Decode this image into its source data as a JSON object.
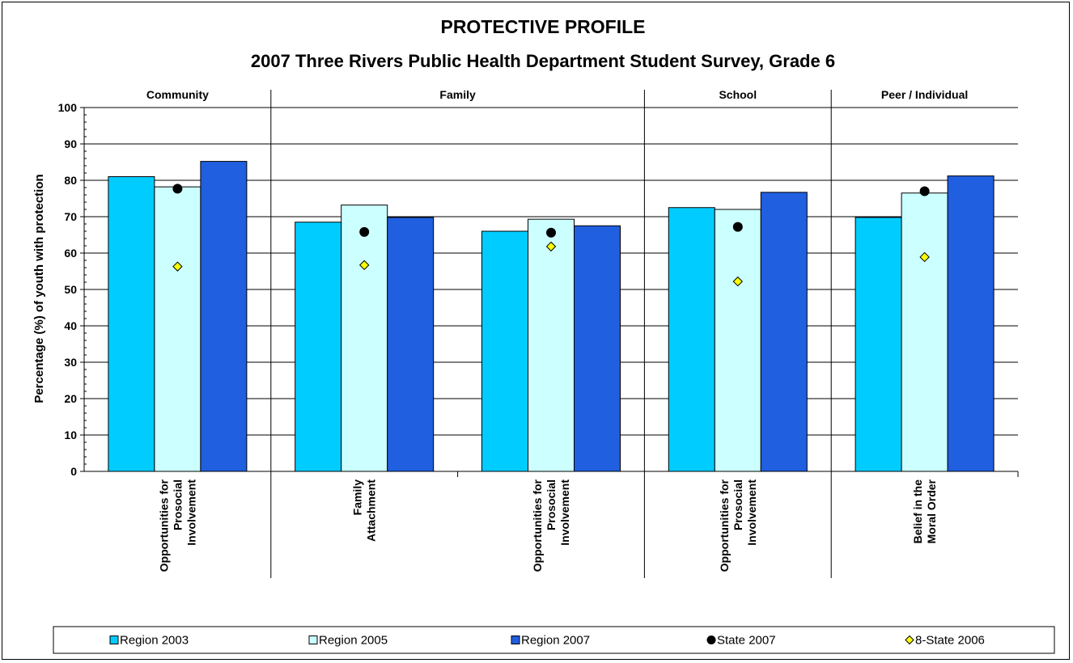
{
  "chart_data": {
    "type": "bar",
    "title": "PROTECTIVE PROFILE",
    "subtitle": "2007 Three Rivers Public Health Department Student Survey, Grade 6",
    "ylabel": "Percentage (%) of youth with protection",
    "ylim": [
      0,
      100
    ],
    "yticks": [
      0,
      10,
      20,
      30,
      40,
      50,
      60,
      70,
      80,
      90,
      100
    ],
    "grid": true,
    "legend_position": "bottom",
    "sections": [
      {
        "label": "Community",
        "categories": [
          0
        ]
      },
      {
        "label": "Family",
        "categories": [
          1,
          2
        ]
      },
      {
        "label": "School",
        "categories": [
          3
        ]
      },
      {
        "label": "Peer / Individual",
        "categories": [
          4
        ]
      }
    ],
    "categories": [
      [
        "Opportunities for",
        "Prosocial",
        "Involvement"
      ],
      [
        "Family",
        "Attachment"
      ],
      [
        "Opportunities for",
        "Prosocial",
        "Involvement"
      ],
      [
        "Opportunities for",
        "Prosocial",
        "Involvement"
      ],
      [
        "Belief in the",
        "Moral Order"
      ]
    ],
    "series": [
      {
        "name": "Region 2003",
        "kind": "bar",
        "color": "#00ccff",
        "values": [
          81,
          68.5,
          66,
          72.5,
          69.8
        ]
      },
      {
        "name": "Region 2005",
        "kind": "bar",
        "color": "#ccffff",
        "values": [
          78.2,
          73.2,
          69.3,
          72,
          76.5
        ]
      },
      {
        "name": "Region 2007",
        "kind": "bar",
        "color": "#1f5fe0",
        "values": [
          85.2,
          69.8,
          67.5,
          76.7,
          81.2
        ]
      },
      {
        "name": "State 2007",
        "kind": "marker",
        "marker": "circle",
        "color": "#000000",
        "values": [
          77.7,
          65.8,
          65.6,
          67.2,
          77
        ]
      },
      {
        "name": "8-State 2006",
        "kind": "marker",
        "marker": "diamond",
        "color": "#ffff00",
        "values": [
          56.3,
          56.7,
          61.8,
          52.2,
          58.9
        ]
      }
    ]
  }
}
